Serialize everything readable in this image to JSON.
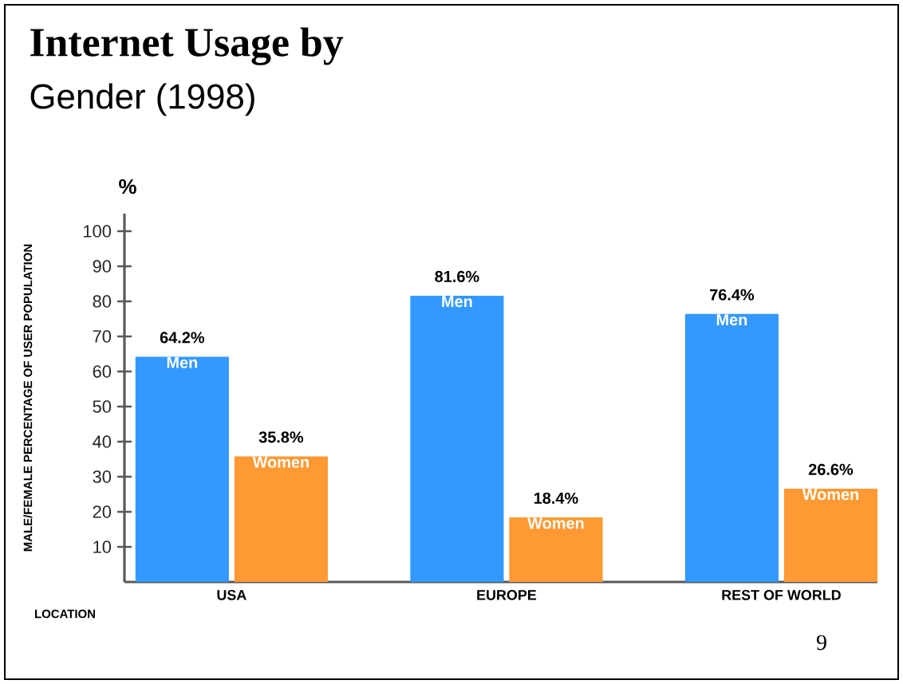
{
  "chart_data": {
    "type": "bar",
    "title": "Internet Usage by",
    "subtitle": "Gender (1998)",
    "ylabel": "MALE/FEMALE PERCENTAGE OF USER POPULATION",
    "categories": [
      "USA",
      "EUROPE",
      "REST OF WORLD"
    ],
    "series": [
      {
        "name": "Men",
        "color": "#3399ff",
        "values": [
          64.2,
          81.6,
          76.4
        ],
        "value_labels": [
          "64.2%",
          "81.6%",
          "76.4%"
        ]
      },
      {
        "name": "Women",
        "color": "#ff9933",
        "values": [
          35.8,
          18.4,
          26.6
        ],
        "value_labels": [
          "35.8%",
          "18.4%",
          "26.6%"
        ]
      }
    ],
    "ylim": [
      0,
      105
    ],
    "yticks": [
      10,
      20,
      30,
      40,
      50,
      60,
      70,
      80,
      90,
      100
    ],
    "grid": false,
    "annotations": [
      "%",
      "LOCATION",
      "9"
    ]
  }
}
